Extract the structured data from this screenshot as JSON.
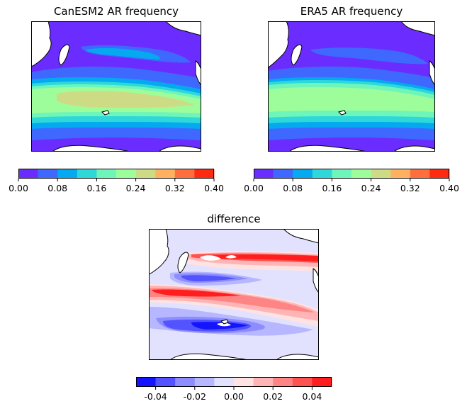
{
  "panels": {
    "canesm2": {
      "title": "CanESM2 AR frequency"
    },
    "era5": {
      "title": "ERA5 AR frequency"
    },
    "difference": {
      "title": "difference"
    }
  },
  "colorbars": {
    "frequency": {
      "ticks": [
        "0.00",
        "0.08",
        "0.16",
        "0.24",
        "0.32",
        "0.40"
      ],
      "colors": [
        "#6b2dff",
        "#3f68ff",
        "#04a9f0",
        "#2fd8d8",
        "#6ef5b9",
        "#9efd9b",
        "#cddc84",
        "#ffb160",
        "#ff6e3f",
        "#ff2a12"
      ]
    },
    "difference": {
      "ticks": [
        "-0.04",
        "-0.02",
        "0.00",
        "0.02",
        "0.04"
      ],
      "colors": [
        "#1414ff",
        "#5353ff",
        "#8d8dff",
        "#b7b7ff",
        "#e2e2ff",
        "#ffe3e3",
        "#ffb5b5",
        "#ff8585",
        "#ff5252",
        "#ff1d1d"
      ]
    }
  }
}
